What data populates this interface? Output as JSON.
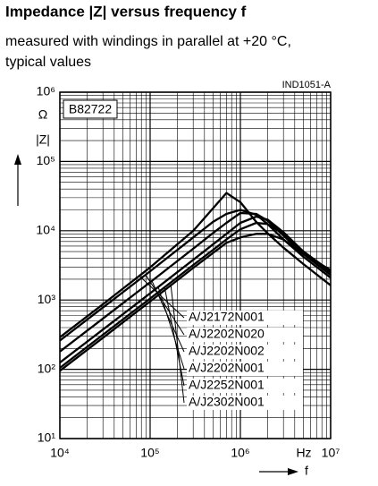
{
  "chart_data": {
    "type": "line",
    "title": "Impedance |Z| versus frequency f",
    "subtitle": [
      "measured with windings in parallel at +20 °C,",
      "typical values"
    ],
    "code": "IND1051-A",
    "box_label": "B82722",
    "y_label": "|Z|",
    "y_unit": "Ω",
    "x_label": "f",
    "x_unit": "Hz",
    "log_x": true,
    "log_y": true,
    "grid": true,
    "color": "#000000",
    "xlim": [
      10000,
      10000000
    ],
    "ylim": [
      10,
      1000000
    ],
    "xticks": [
      {
        "value": 10000,
        "label": "10⁴"
      },
      {
        "value": 100000,
        "label": "10⁵"
      },
      {
        "value": 1000000,
        "label": "10⁶"
      },
      {
        "value": 10000000,
        "label": "10⁷"
      }
    ],
    "yticks": [
      {
        "value": 10,
        "label": "10¹"
      },
      {
        "value": 100,
        "label": "10²"
      },
      {
        "value": 1000,
        "label": "10³"
      },
      {
        "value": 10000,
        "label": "10⁴"
      },
      {
        "value": 100000,
        "label": "10⁵"
      },
      {
        "value": 1000000,
        "label": "10⁶"
      }
    ],
    "x": [
      10000,
      30000,
      100000,
      300000,
      500000,
      700000,
      1000000,
      1500000,
      2000000,
      3000000,
      5000000,
      10000000
    ],
    "series": [
      {
        "name": "A/J2172N001",
        "color": "#000000",
        "values": [
          290,
          870,
          2950,
          9970,
          21200,
          35100,
          25800,
          13400,
          9200,
          5700,
          3300,
          1630
        ]
      },
      {
        "name": "A/J2202N020",
        "color": "#000000",
        "values": [
          260,
          780,
          2600,
          8000,
          13500,
          17500,
          20000,
          17000,
          12500,
          7500,
          4200,
          2100
        ]
      },
      {
        "name": "A/J2202N002",
        "color": "#000000",
        "values": [
          180,
          540,
          1800,
          5500,
          9300,
          13000,
          18000,
          17500,
          14000,
          8500,
          4600,
          2300
        ]
      },
      {
        "name": "A/J2202N001",
        "color": "#000000",
        "values": [
          125,
          375,
          1250,
          3800,
          6400,
          9000,
          13000,
          16000,
          14500,
          9500,
          5000,
          2500
        ]
      },
      {
        "name": "A/J2252N001",
        "color": "#000000",
        "values": [
          105,
          315,
          1050,
          3200,
          5300,
          7500,
          10500,
          13000,
          12500,
          9000,
          5000,
          2600
        ]
      },
      {
        "name": "A/J2302N001",
        "color": "#000000",
        "values": [
          95,
          285,
          950,
          2900,
          4800,
          6700,
          8000,
          9000,
          9000,
          7500,
          4600,
          2700
        ]
      }
    ]
  }
}
